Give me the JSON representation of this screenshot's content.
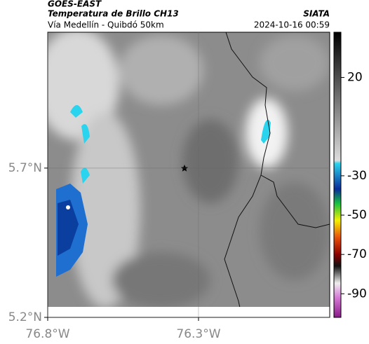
{
  "header": {
    "source": "GOES-EAST",
    "title": "Temperatura de Brillo CH13",
    "subtitle": "Vía Medellín - Quibdó 50km",
    "brand": "SIATA",
    "datetime": "2024-10-16 00:59"
  },
  "map": {
    "lon_lim": [
      -76.8,
      -75.865
    ],
    "lat_lim": [
      5.2,
      6.155
    ],
    "lon_ticks": [
      {
        "value": -76.8,
        "label": "76.8°W"
      },
      {
        "value": -76.3,
        "label": "76.3°W"
      }
    ],
    "lat_ticks": [
      {
        "value": 5.7,
        "label": "5.7°N"
      },
      {
        "value": 5.2,
        "label": "5.2°N"
      }
    ]
  },
  "colorbar": {
    "lim": [
      43,
      -102
    ],
    "ticks": [
      20,
      -30,
      -50,
      -70,
      -90
    ]
  }
}
